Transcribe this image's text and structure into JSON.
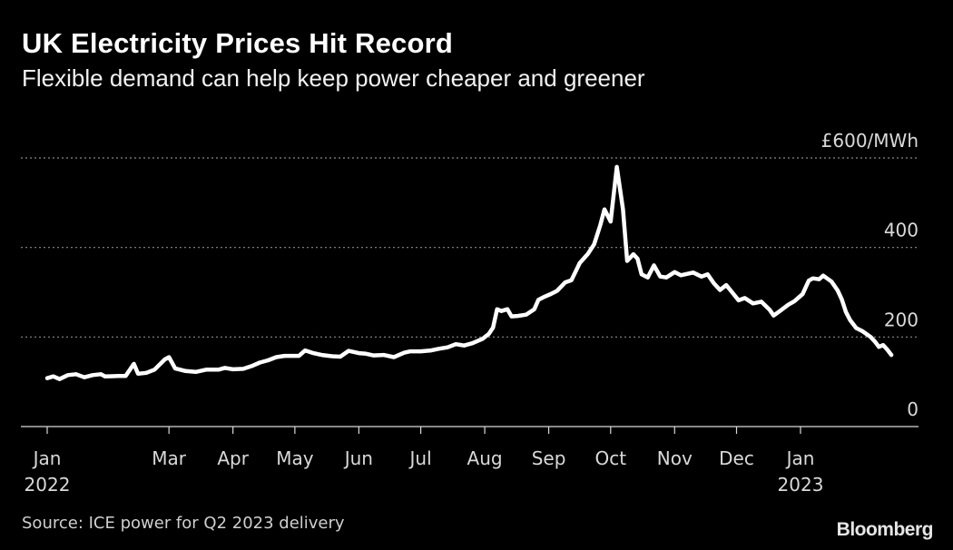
{
  "title": "UK Electricity Prices Hit Record",
  "subtitle": "Flexible demand can help keep power cheaper and greener",
  "source": "Source: ICE power for Q2 2023 delivery",
  "brand": "Bloomberg",
  "colors": {
    "background": "#000000",
    "line": "#ffffff",
    "grid": "#8a8a8a",
    "text": "#d9d9d9"
  },
  "chart_data": {
    "type": "line",
    "title": "UK Electricity Prices Hit Record",
    "ylabel": "£600/MWh",
    "ylim": [
      0,
      600
    ],
    "yticks": [
      {
        "value": 600,
        "label": "£600/MWh"
      },
      {
        "value": 400,
        "label": "400"
      },
      {
        "value": 200,
        "label": "200"
      },
      {
        "value": 0,
        "label": "0"
      }
    ],
    "xlim": [
      "2022-01-01",
      "2023-02-15"
    ],
    "xticks": [
      {
        "date": "2022-01-01",
        "label": "Jan",
        "sublabel": "2022"
      },
      {
        "date": "2022-03-01",
        "label": "Mar"
      },
      {
        "date": "2022-04-01",
        "label": "Apr"
      },
      {
        "date": "2022-05-01",
        "label": "May"
      },
      {
        "date": "2022-06-01",
        "label": "Jun"
      },
      {
        "date": "2022-07-01",
        "label": "Jul"
      },
      {
        "date": "2022-08-01",
        "label": "Aug"
      },
      {
        "date": "2022-09-01",
        "label": "Sep"
      },
      {
        "date": "2022-10-01",
        "label": "Oct"
      },
      {
        "date": "2022-11-01",
        "label": "Nov"
      },
      {
        "date": "2022-12-01",
        "label": "Dec"
      },
      {
        "date": "2023-01-01",
        "label": "Jan",
        "sublabel": "2023"
      }
    ],
    "grid": true,
    "series": [
      {
        "points": [
          [
            "2022-01-01",
            108
          ],
          [
            "2022-01-04",
            112
          ],
          [
            "2022-01-07",
            106
          ],
          [
            "2022-01-11",
            115
          ],
          [
            "2022-01-15",
            117
          ],
          [
            "2022-01-19",
            110
          ],
          [
            "2022-01-23",
            115
          ],
          [
            "2022-01-27",
            117
          ],
          [
            "2022-01-29",
            112
          ],
          [
            "2022-02-04",
            113
          ],
          [
            "2022-02-08",
            113
          ],
          [
            "2022-02-12",
            140
          ],
          [
            "2022-02-14",
            118
          ],
          [
            "2022-02-18",
            120
          ],
          [
            "2022-02-22",
            127
          ],
          [
            "2022-02-27",
            150
          ],
          [
            "2022-03-01",
            155
          ],
          [
            "2022-03-04",
            130
          ],
          [
            "2022-03-09",
            124
          ],
          [
            "2022-03-14",
            122
          ],
          [
            "2022-03-19",
            127
          ],
          [
            "2022-03-25",
            127
          ],
          [
            "2022-03-28",
            131
          ],
          [
            "2022-04-01",
            128
          ],
          [
            "2022-04-06",
            129
          ],
          [
            "2022-04-10",
            135
          ],
          [
            "2022-04-14",
            143
          ],
          [
            "2022-04-18",
            148
          ],
          [
            "2022-04-22",
            155
          ],
          [
            "2022-04-26",
            158
          ],
          [
            "2022-05-03",
            158
          ],
          [
            "2022-05-06",
            170
          ],
          [
            "2022-05-10",
            164
          ],
          [
            "2022-05-14",
            160
          ],
          [
            "2022-05-19",
            157
          ],
          [
            "2022-05-23",
            156
          ],
          [
            "2022-05-27",
            169
          ],
          [
            "2022-06-01",
            164
          ],
          [
            "2022-06-04",
            163
          ],
          [
            "2022-06-08",
            159
          ],
          [
            "2022-06-13",
            160
          ],
          [
            "2022-06-18",
            155
          ],
          [
            "2022-06-23",
            165
          ],
          [
            "2022-06-26",
            168
          ],
          [
            "2022-07-01",
            168
          ],
          [
            "2022-07-06",
            170
          ],
          [
            "2022-07-10",
            174
          ],
          [
            "2022-07-14",
            177
          ],
          [
            "2022-07-18",
            184
          ],
          [
            "2022-07-22",
            181
          ],
          [
            "2022-07-26",
            186
          ],
          [
            "2022-07-31",
            196
          ],
          [
            "2022-08-03",
            207
          ],
          [
            "2022-08-05",
            221
          ],
          [
            "2022-08-07",
            262
          ],
          [
            "2022-08-09",
            258
          ],
          [
            "2022-08-12",
            262
          ],
          [
            "2022-08-14",
            246
          ],
          [
            "2022-08-17",
            247
          ],
          [
            "2022-08-21",
            250
          ],
          [
            "2022-08-25",
            262
          ],
          [
            "2022-08-27",
            283
          ],
          [
            "2022-08-30",
            290
          ],
          [
            "2022-09-02",
            296
          ],
          [
            "2022-09-05",
            303
          ],
          [
            "2022-09-09",
            322
          ],
          [
            "2022-09-12",
            327
          ],
          [
            "2022-09-16",
            365
          ],
          [
            "2022-09-20",
            386
          ],
          [
            "2022-09-23",
            407
          ],
          [
            "2022-09-26",
            450
          ],
          [
            "2022-09-28",
            485
          ],
          [
            "2022-10-01",
            458
          ],
          [
            "2022-10-04",
            580
          ],
          [
            "2022-10-07",
            485
          ],
          [
            "2022-10-09",
            370
          ],
          [
            "2022-10-12",
            385
          ],
          [
            "2022-10-14",
            375
          ],
          [
            "2022-10-16",
            340
          ],
          [
            "2022-10-19",
            333
          ],
          [
            "2022-10-22",
            360
          ],
          [
            "2022-10-25",
            335
          ],
          [
            "2022-10-28",
            333
          ],
          [
            "2022-11-01",
            345
          ],
          [
            "2022-11-04",
            338
          ],
          [
            "2022-11-07",
            341
          ],
          [
            "2022-11-10",
            344
          ],
          [
            "2022-11-14",
            335
          ],
          [
            "2022-11-17",
            340
          ],
          [
            "2022-11-20",
            320
          ],
          [
            "2022-11-23",
            305
          ],
          [
            "2022-11-26",
            316
          ],
          [
            "2022-11-29",
            299
          ],
          [
            "2022-12-02",
            282
          ],
          [
            "2022-12-05",
            287
          ],
          [
            "2022-12-09",
            275
          ],
          [
            "2022-12-13",
            279
          ],
          [
            "2022-12-17",
            261
          ],
          [
            "2022-12-19",
            248
          ],
          [
            "2022-12-22",
            258
          ],
          [
            "2022-12-26",
            272
          ],
          [
            "2022-12-29",
            280
          ],
          [
            "2023-01-02",
            296
          ],
          [
            "2023-01-05",
            326
          ],
          [
            "2023-01-07",
            331
          ],
          [
            "2023-01-10",
            329
          ],
          [
            "2023-01-12",
            337
          ],
          [
            "2023-01-16",
            324
          ],
          [
            "2023-01-19",
            304
          ],
          [
            "2023-01-21",
            284
          ],
          [
            "2023-01-23",
            256
          ],
          [
            "2023-01-25",
            238
          ],
          [
            "2023-01-28",
            220
          ],
          [
            "2023-01-31",
            213
          ],
          [
            "2023-02-04",
            200
          ],
          [
            "2023-02-06",
            190
          ],
          [
            "2023-02-08",
            178
          ],
          [
            "2023-02-10",
            182
          ],
          [
            "2023-02-12",
            172
          ],
          [
            "2023-02-14",
            160
          ]
        ]
      }
    ]
  }
}
